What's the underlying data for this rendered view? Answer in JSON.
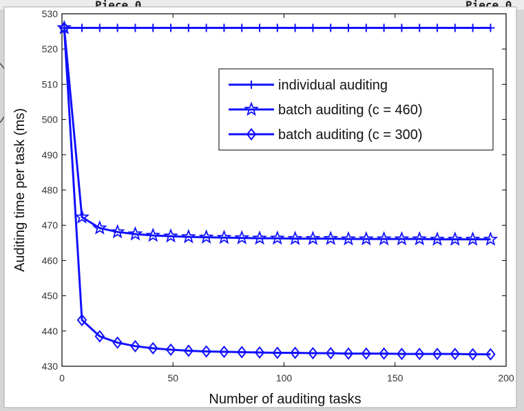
{
  "background": {
    "left_fragment": "Piece 0",
    "right_fragment": "Piece 0"
  },
  "colors": {
    "series": "#1010ff",
    "axes": "#000000",
    "plot_bg": "#ffffff"
  },
  "chart_data": {
    "type": "line",
    "title": "",
    "xlabel": "Number of auditing tasks",
    "ylabel": "Auditing time per task (ms)",
    "xlim": [
      0,
      200
    ],
    "ylim": [
      430,
      530
    ],
    "xticks": [
      0,
      50,
      100,
      150,
      200
    ],
    "yticks": [
      430,
      440,
      450,
      460,
      470,
      480,
      490,
      500,
      510,
      520,
      530
    ],
    "grid": false,
    "legend_position": "top-right",
    "x": [
      1,
      9,
      17,
      25,
      33,
      41,
      49,
      57,
      65,
      73,
      81,
      89,
      97,
      105,
      113,
      121,
      129,
      137,
      145,
      153,
      161,
      169,
      177,
      185,
      193
    ],
    "series": [
      {
        "name": "individual auditing",
        "marker": "plus",
        "values": [
          526,
          526,
          526,
          526,
          526,
          526,
          526,
          526,
          526,
          526,
          526,
          526,
          526,
          526,
          526,
          526,
          526,
          526,
          526,
          526,
          526,
          526,
          526,
          526,
          526
        ]
      },
      {
        "name": "batch auditing (c = 460)",
        "marker": "star",
        "values": [
          526,
          472.3,
          469.2,
          468.1,
          467.5,
          467.1,
          466.9,
          466.7,
          466.6,
          466.5,
          466.4,
          466.3,
          466.3,
          466.2,
          466.2,
          466.2,
          466.1,
          466.1,
          466.1,
          466.1,
          466.1,
          466.0,
          466.0,
          466.0,
          466.0
        ]
      },
      {
        "name": "batch auditing (c = 300)",
        "marker": "diamond",
        "values": [
          526,
          443.1,
          438.5,
          436.7,
          435.7,
          435.1,
          434.7,
          434.4,
          434.2,
          434.1,
          434.0,
          433.9,
          433.8,
          433.8,
          433.7,
          433.7,
          433.6,
          433.6,
          433.6,
          433.5,
          433.5,
          433.5,
          433.5,
          433.4,
          433.4
        ]
      }
    ]
  }
}
